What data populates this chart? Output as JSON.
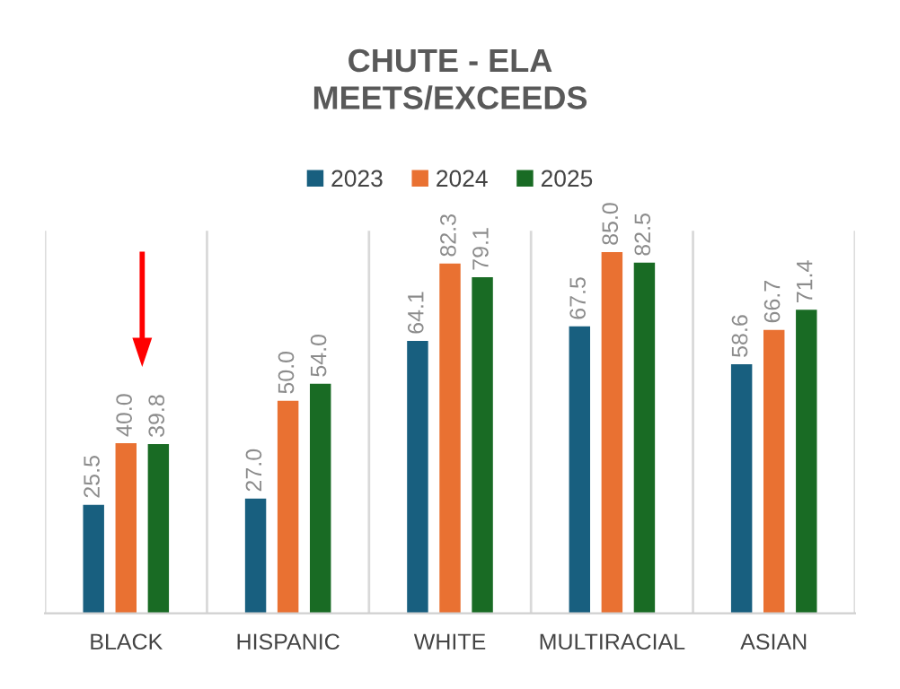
{
  "chart_data": {
    "type": "bar",
    "title": "CHUTE - ELA\nMEETS/EXCEEDS",
    "categories": [
      "BLACK",
      "HISPANIC",
      "WHITE",
      "MULTIRACIAL",
      "ASIAN"
    ],
    "series": [
      {
        "name": "2023",
        "color": "#185f7f",
        "values": [
          25.5,
          27.0,
          64.1,
          67.5,
          58.6
        ],
        "value_labels": [
          "25.5",
          "27.0",
          "64.1",
          "67.5",
          "58.6"
        ]
      },
      {
        "name": "2024",
        "color": "#e97132",
        "values": [
          40.0,
          50.0,
          82.3,
          85.0,
          66.7
        ],
        "value_labels": [
          "40.0",
          "50.0",
          "82.3",
          "85.0",
          "66.7"
        ]
      },
      {
        "name": "2025",
        "color": "#196b24",
        "values": [
          39.8,
          54.0,
          79.1,
          82.5,
          71.4
        ],
        "value_labels": [
          "39.8",
          "54.0",
          "79.1",
          "82.5",
          "71.4"
        ]
      }
    ],
    "ylim": [
      0,
      90
    ],
    "legend": "top",
    "grid": "x",
    "tick_labels": "x"
  }
}
